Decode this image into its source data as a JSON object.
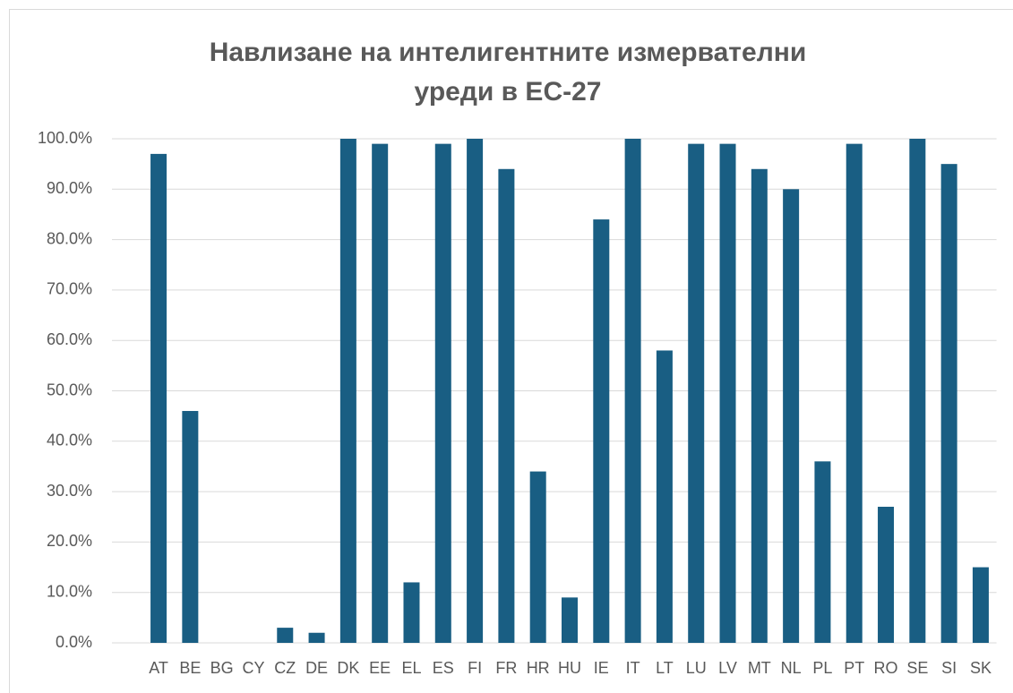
{
  "chart_data": {
    "type": "bar",
    "title": [
      "Навлизане на интелигентните измервателни",
      "уреди в ЕС-27"
    ],
    "categories": [
      "AT",
      "BE",
      "BG",
      "CY",
      "CZ",
      "DE",
      "DK",
      "EE",
      "EL",
      "ES",
      "FI",
      "FR",
      "HR",
      "HU",
      "IE",
      "IT",
      "LT",
      "LU",
      "LV",
      "MT",
      "NL",
      "PL",
      "PT",
      "RO",
      "SE",
      "SI",
      "SK"
    ],
    "values": [
      97,
      46,
      0,
      0,
      3,
      2,
      100,
      99,
      12,
      99,
      100,
      94,
      34,
      9,
      84,
      100,
      58,
      99,
      99,
      94,
      90,
      36,
      99,
      27,
      100,
      95,
      15
    ],
    "color": "#195e83",
    "ylim": [
      0,
      100
    ],
    "yticks": [
      {
        "value": 0,
        "label": "0.0%"
      },
      {
        "value": 10,
        "label": "10.0%"
      },
      {
        "value": 20,
        "label": "20.0%"
      },
      {
        "value": 30,
        "label": "30.0%"
      },
      {
        "value": 40,
        "label": "40.0%"
      },
      {
        "value": 50,
        "label": "50.0%"
      },
      {
        "value": 60,
        "label": "60.0%"
      },
      {
        "value": 70,
        "label": "70.0%"
      },
      {
        "value": 80,
        "label": "80.0%"
      },
      {
        "value": 90,
        "label": "90.0%"
      },
      {
        "value": 100,
        "label": "100.0%"
      }
    ],
    "grid": true
  }
}
